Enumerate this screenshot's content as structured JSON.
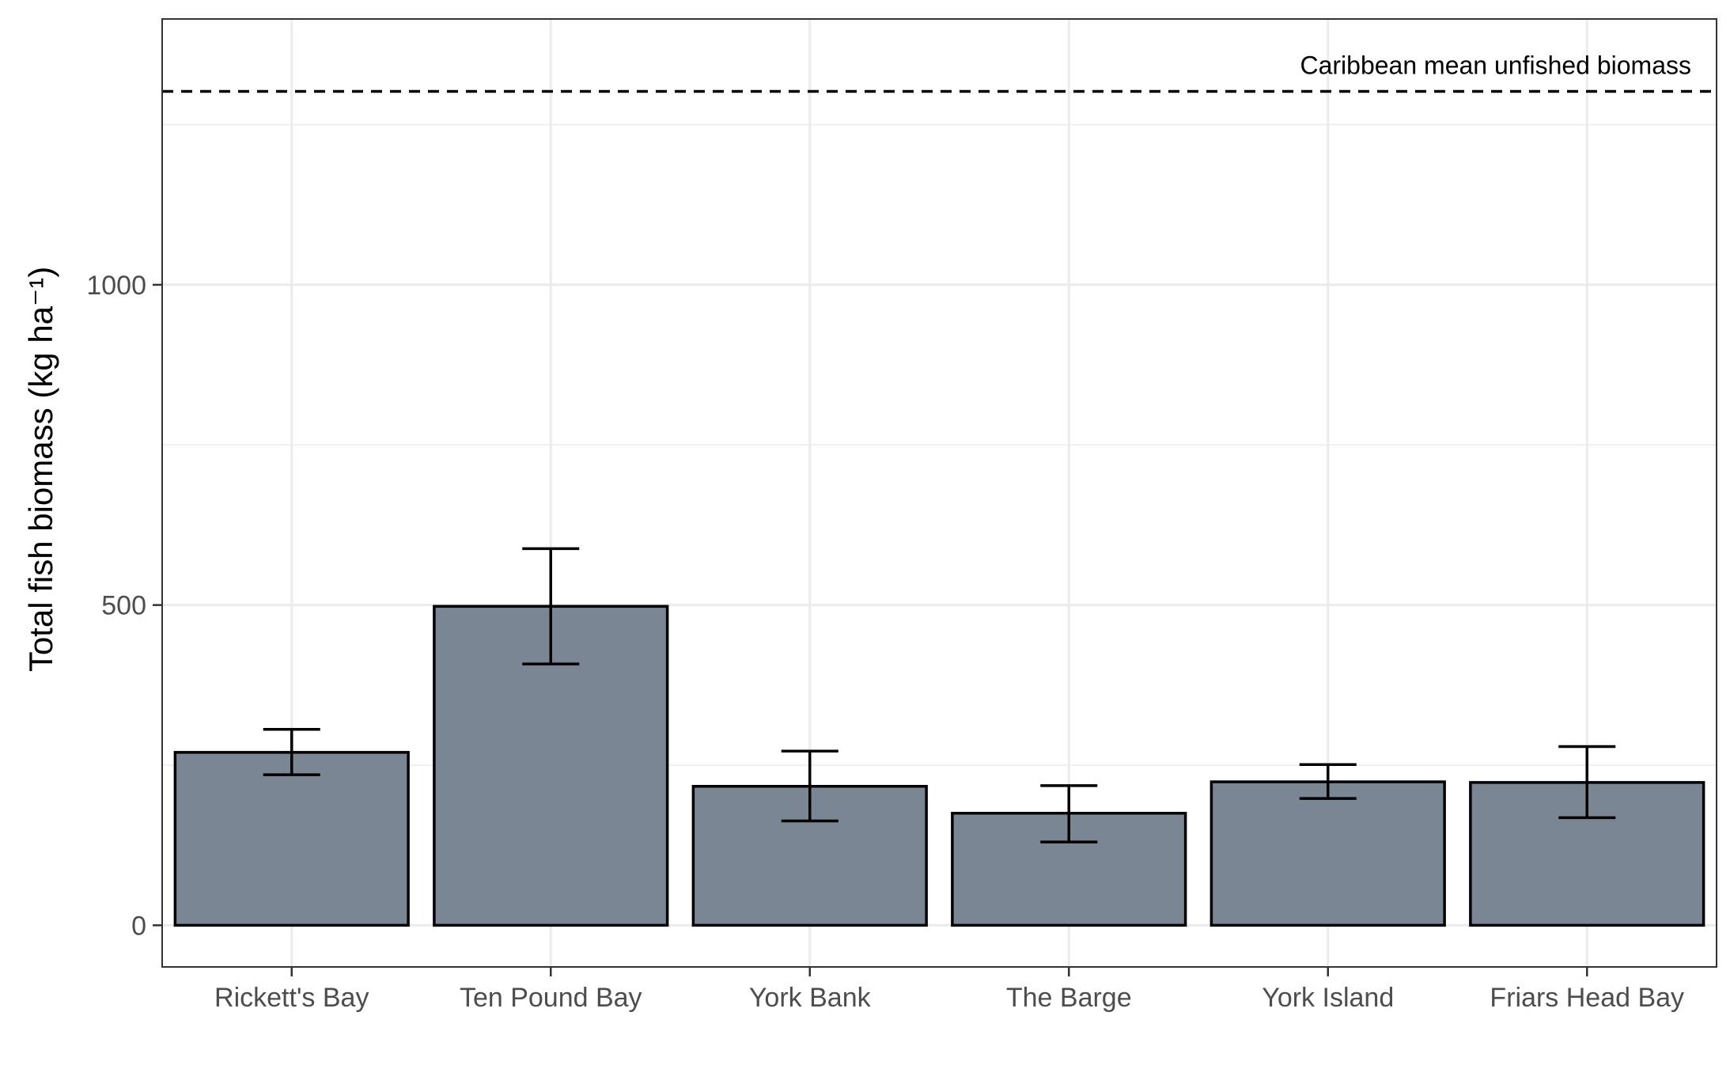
{
  "chart_data": {
    "type": "bar",
    "categories": [
      "Rickett's Bay",
      "Ten Pound Bay",
      "York Bank",
      "The Barge",
      "York Island",
      "Friars Head Bay"
    ],
    "values": [
      270,
      498,
      217,
      175,
      224,
      223
    ],
    "error_bars": {
      "lower": [
        235,
        408,
        163,
        130,
        198,
        168
      ],
      "upper": [
        306,
        588,
        272,
        218,
        251,
        279
      ]
    },
    "ylabel": "Total fish biomass (kg ha⁻¹)",
    "xlabel": "",
    "ylim": [
      -65,
      1415
    ],
    "yticks": [
      0,
      500,
      1000
    ],
    "ytick_labels": [
      "0",
      "500",
      "1000"
    ],
    "reference_line": {
      "value": 1302,
      "label": "Caribbean mean unfished biomass",
      "style": "dashed"
    },
    "grid": true,
    "bar_fill": "#7a8693",
    "bar_outline": "#000000",
    "grid_color": "#ebebeb"
  }
}
